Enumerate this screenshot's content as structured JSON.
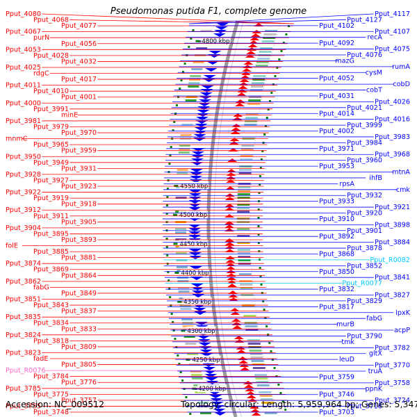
{
  "title": "Pseudomonas putida F1, complete genome",
  "footer": {
    "accession": "Accession: NC_009512",
    "summary": "Topology: circular; Length: 5,959,964 bp; Genes: 5,347"
  },
  "colors": {
    "left_strand": "#ff0000",
    "right_strand": "#0000ff",
    "rna": "#ff66cc",
    "rna_right": "#00c8ff",
    "ring": "#9a9a9a",
    "tick": "#0a7f0a"
  },
  "scale_labels": [
    {
      "label": "4800 kbp",
      "kb": 4800
    },
    {
      "label": "4550 kbp",
      "kb": 4550
    },
    {
      "label": "4500 kbp",
      "kb": 4500
    },
    {
      "label": "4450 kbp",
      "kb": 4450
    },
    {
      "label": "4400 kbp",
      "kb": 4400
    },
    {
      "label": "4350 kbp",
      "kb": 4350
    },
    {
      "label": "4300 kbp",
      "kb": 4300
    },
    {
      "label": "4250 kbp",
      "kb": 4250
    },
    {
      "label": "4200 kbp",
      "kb": 4200
    }
  ],
  "left_labels": [
    "Pput_4080",
    "Pput_4068",
    "Pput_4077",
    "Pput_4067",
    "purN",
    "Pput_4056",
    "Pput_4053",
    "Pput_4028",
    "Pput_4032",
    "Pput_4025",
    "rdgC",
    "Pput_4017",
    "Pput_4011",
    "Pput_4010",
    "Pput_4001",
    "Pput_4000",
    "Pput_3991",
    "minE",
    "Pput_3981",
    "Pput_3979",
    "Pput_3970",
    "mnmC",
    "Pput_3965",
    "Pput_3959",
    "Pput_3950",
    "Pput_3949",
    "Pput_3931",
    "Pput_3928",
    "Pput_3927",
    "Pput_3923",
    "Pput_3922",
    "Pput_3919",
    "Pput_3918",
    "Pput_3912",
    "Pput_3911",
    "Pput_3905",
    "Pput_3904",
    "Pput_3895",
    "Pput_3893",
    "folE",
    "Pput_3885",
    "Pput_3881",
    "Pput_3874",
    "Pput_3869",
    "Pput_3864",
    "Pput_3862",
    "fabG",
    "Pput_3849",
    "Pput_3851",
    "Pput_3843",
    "Pput_3837",
    "Pput_3835",
    "Pput_3834",
    "Pput_3833",
    "Pput_3824",
    "Pput_3818",
    "Pput_3809",
    "Pput_3823",
    "fadE",
    "Pput_3805",
    "Pput_R0076",
    "Pput_3784",
    "Pput_3776",
    "Pput_3785",
    "Pput_3775",
    "Pput_3757",
    "Pput_3755",
    "Pput_3748"
  ],
  "right_labels": [
    "Pput_4117",
    "Pput_4127",
    "Pput_4102",
    "Pput_4107",
    "recA",
    "Pput_4092",
    "Pput_4075",
    "Pput_4076",
    "mazG",
    "rumA",
    "cysM",
    "Pput_4052",
    "cobD",
    "cobT",
    "Pput_4031",
    "Pput_4026",
    "Pput_4021",
    "Pput_4014",
    "Pput_4016",
    "Pput_3999",
    "Pput_4002",
    "Pput_3983",
    "Pput_3984",
    "Pput_3971",
    "Pput_3968",
    "Pput_3960",
    "Pput_3953",
    "mtnA",
    "ihfB",
    "rpsA",
    "cmk",
    "Pput_3932",
    "Pput_3933",
    "Pput_3921",
    "Pput_3920",
    "Pput_3910",
    "Pput_3898",
    "Pput_3901",
    "Pput_3892",
    "Pput_3884",
    "Pput_3878",
    "Pput_3868",
    "Pput_R0082",
    "Pput_3852",
    "Pput_3850",
    "Pput_3841",
    "Pput_R0077",
    "Pput_3832",
    "Pput_3827",
    "Pput_3829",
    "Pput_3817",
    "lpxK",
    "fabG",
    "murB",
    "acpP",
    "Pput_3790",
    "tmk",
    "Pput_3782",
    "gltX",
    "leuD",
    "Pput_3770",
    "truA",
    "Pput_3759",
    "Pput_3758",
    "ppnK",
    "Pput_3746",
    "Pput_3724",
    "Pput_3716",
    "Pput_3703"
  ]
}
